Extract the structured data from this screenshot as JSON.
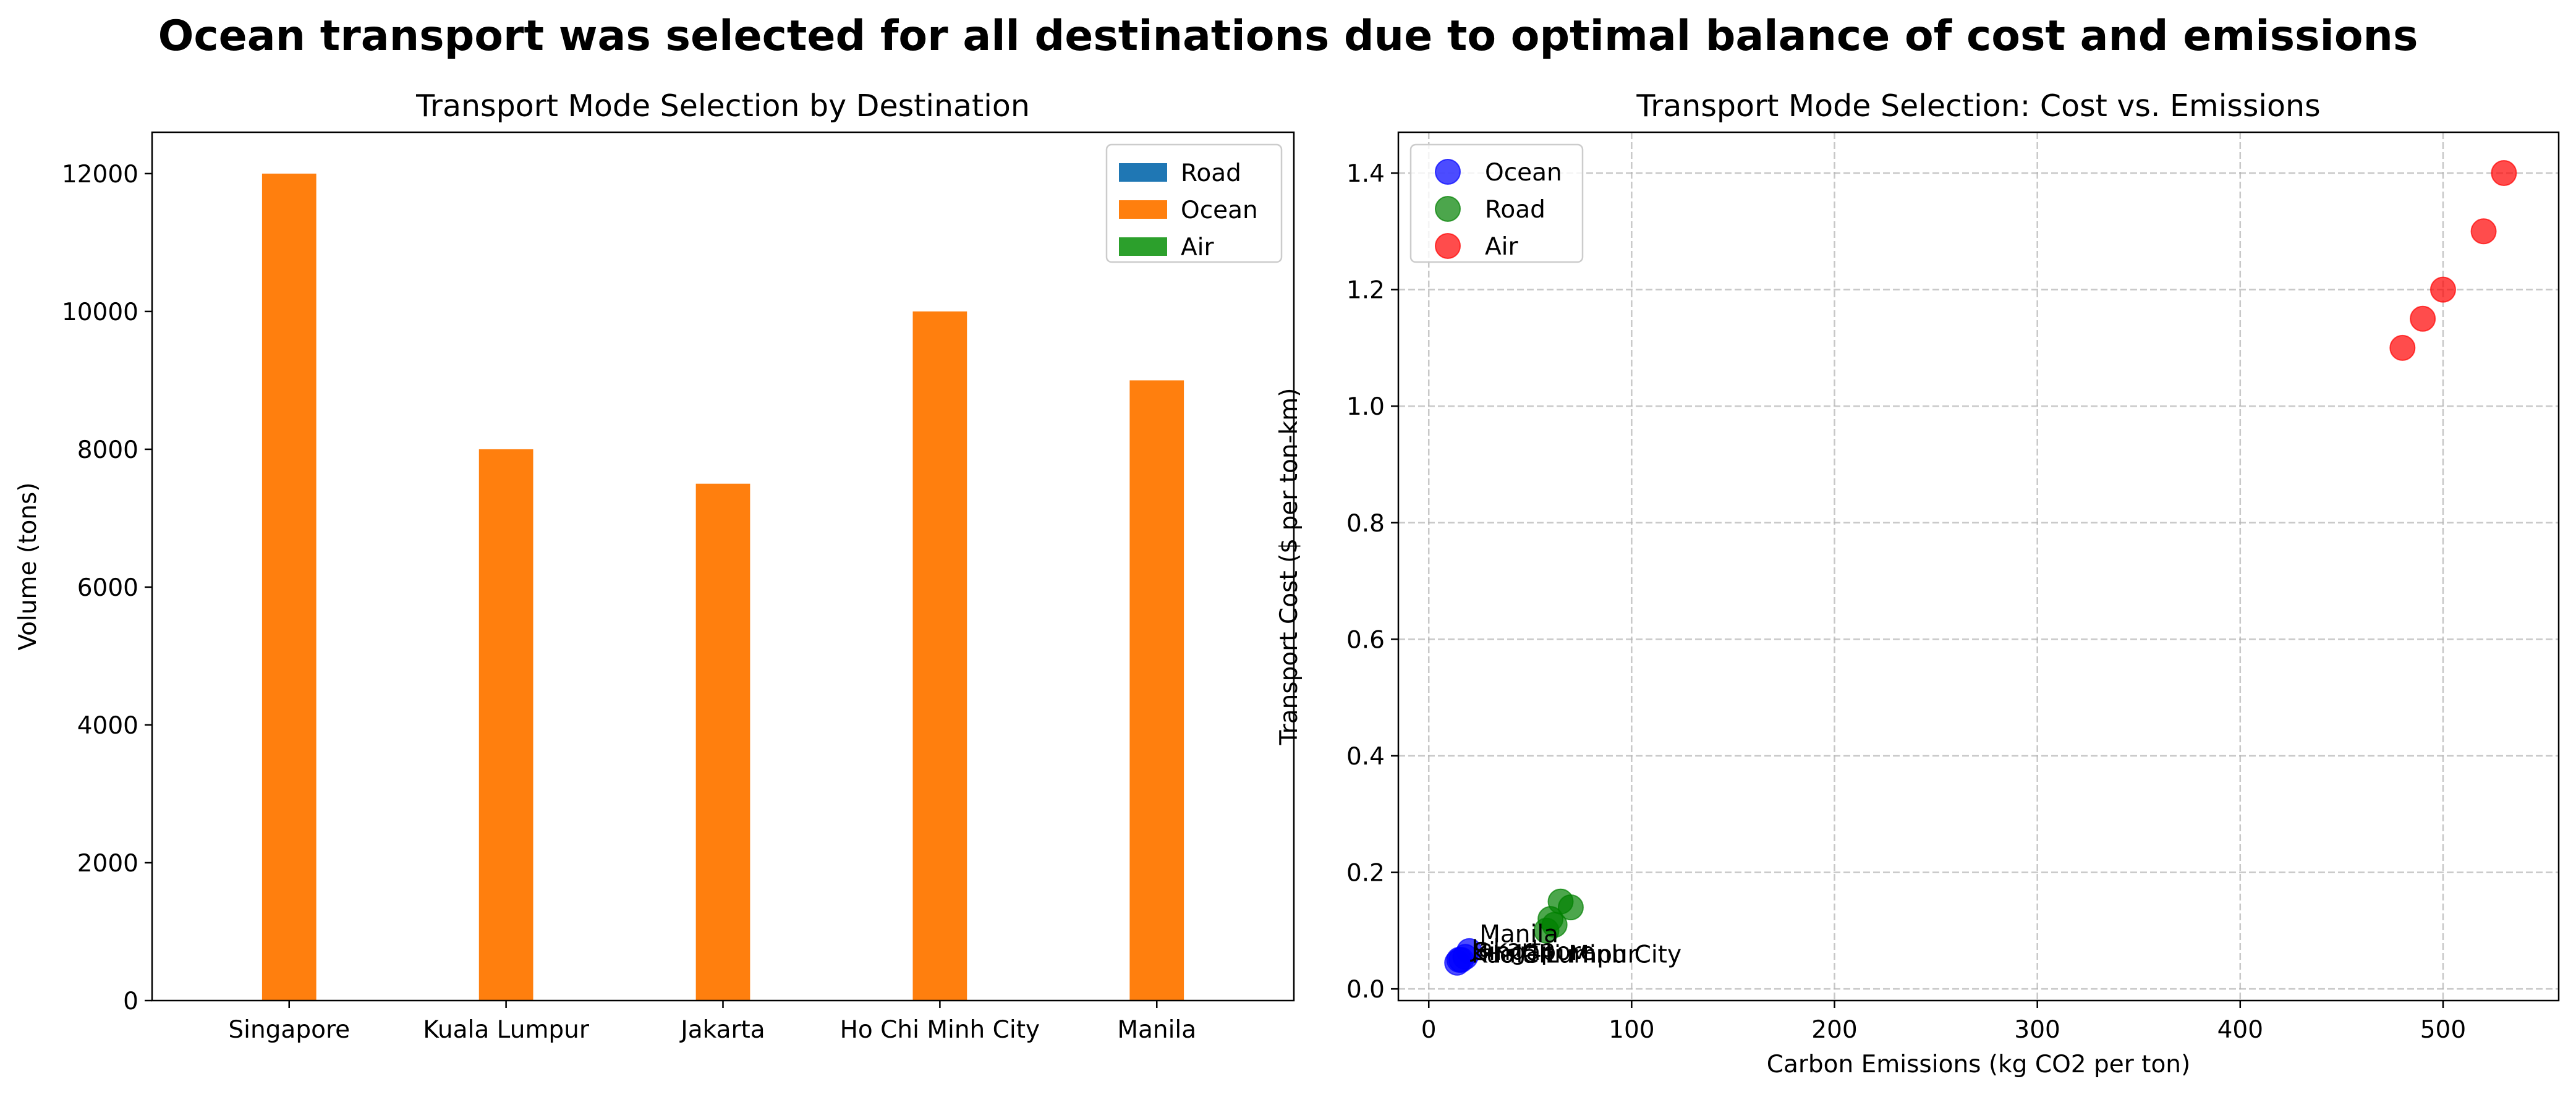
{
  "suptitle": "Ocean transport was selected for all destinations due to optimal balance of cost and emissions",
  "chart_data": [
    {
      "type": "bar",
      "title": "Transport Mode Selection by Destination",
      "xlabel": "",
      "ylabel": "Volume (tons)",
      "ylim": [
        0,
        12600
      ],
      "yticks": [
        0,
        2000,
        4000,
        6000,
        8000,
        10000,
        12000
      ],
      "categories": [
        "Singapore",
        "Kuala Lumpur",
        "Jakarta",
        "Ho Chi Minh City",
        "Manila"
      ],
      "series": [
        {
          "name": "Road",
          "color": "#1f77b4",
          "values": [
            0,
            0,
            0,
            0,
            0
          ]
        },
        {
          "name": "Ocean",
          "color": "#ff7f0e",
          "values": [
            12000,
            8000,
            7500,
            10000,
            9000
          ]
        },
        {
          "name": "Air",
          "color": "#2ca02c",
          "values": [
            0,
            0,
            0,
            0,
            0
          ]
        }
      ],
      "legend": "top-right",
      "grid": false
    },
    {
      "type": "scatter",
      "title": "Transport Mode Selection: Cost vs. Emissions",
      "xlabel": "Carbon Emissions (kg CO2 per ton)",
      "ylabel": "Transport Cost ($ per ton-km)",
      "xlim": [
        -15,
        557
      ],
      "ylim": [
        -0.02,
        1.47
      ],
      "xticks": [
        0,
        100,
        200,
        300,
        400,
        500
      ],
      "yticks": [
        0.0,
        0.2,
        0.4,
        0.6,
        0.8,
        1.0,
        1.2,
        1.4
      ],
      "yticklabels": [
        "0.0",
        "0.2",
        "0.4",
        "0.6",
        "0.8",
        "1.0",
        "1.2",
        "1.4"
      ],
      "legend": "top-left",
      "grid": true,
      "series": [
        {
          "name": "Ocean",
          "color": "#0000ff",
          "points": [
            [
              15,
              0.05
            ],
            [
              14,
              0.045
            ],
            [
              18,
              0.055
            ],
            [
              16,
              0.05
            ],
            [
              20,
              0.065
            ]
          ]
        },
        {
          "name": "Road",
          "color": "#008000",
          "points": [
            [
              65,
              0.15
            ],
            [
              70,
              0.14
            ],
            [
              60,
              0.12
            ],
            [
              62,
              0.11
            ],
            [
              58,
              0.1
            ]
          ]
        },
        {
          "name": "Air",
          "color": "#ff0000",
          "points": [
            [
              500,
              1.2
            ],
            [
              530,
              1.4
            ],
            [
              480,
              1.1
            ],
            [
              520,
              1.3
            ],
            [
              490,
              1.15
            ]
          ]
        }
      ],
      "annotations": [
        {
          "text": "Manila",
          "x": 25,
          "y": 0.095
        },
        {
          "text": "Jakarta",
          "x": 21,
          "y": 0.07
        },
        {
          "text": "Singapore",
          "x": 22,
          "y": 0.065
        },
        {
          "text": "Kuala Lumpur",
          "x": 21,
          "y": 0.06
        },
        {
          "text": "Ho Chi Minh City",
          "x": 26,
          "y": 0.06
        }
      ]
    }
  ]
}
